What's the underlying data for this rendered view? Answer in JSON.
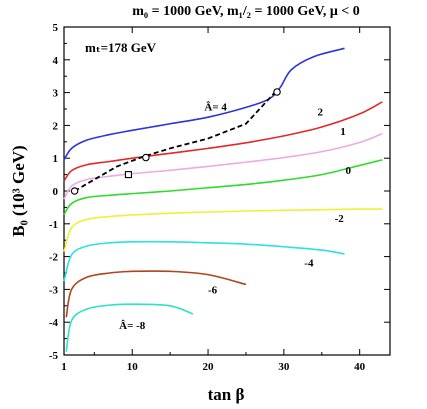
{
  "chart_data": {
    "type": "line",
    "title": "m₀ = 1000 GeV, m₁/₂ = 1000 GeV, μ < 0",
    "xlabel": "tan β",
    "ylabel": "B₀ (10³ GeV)",
    "annotation": "mₜ=178 GeV",
    "xlim": [
      1,
      44
    ],
    "ylim": [
      -5,
      5
    ],
    "xticks": [
      1,
      10,
      20,
      30,
      40
    ],
    "yticks": [
      -5,
      -4,
      -3,
      -2,
      -1,
      0,
      1,
      2,
      3,
      4,
      5
    ],
    "grid": false,
    "series": [
      {
        "name": "Â= 4",
        "color": "#2b35d8",
        "x": [
          1,
          2,
          4,
          7,
          10,
          15,
          20,
          25,
          28,
          29.5,
          31,
          34,
          38
        ],
        "y": [
          0.95,
          1.3,
          1.55,
          1.72,
          1.85,
          2.05,
          2.25,
          2.55,
          2.8,
          3.15,
          3.7,
          4.1,
          4.35
        ]
      },
      {
        "name": "2",
        "color": "#e02a2a",
        "x": [
          1,
          2,
          4,
          7,
          10,
          15,
          20,
          25,
          30,
          35,
          40,
          43
        ],
        "y": [
          0.3,
          0.62,
          0.8,
          0.9,
          1.0,
          1.15,
          1.3,
          1.47,
          1.68,
          1.95,
          2.35,
          2.72
        ]
      },
      {
        "name": "1",
        "color": "#eea9e8",
        "x": [
          1,
          2,
          4,
          7,
          10,
          15,
          20,
          25,
          30,
          35,
          40,
          43
        ],
        "y": [
          -0.25,
          0.15,
          0.35,
          0.45,
          0.53,
          0.63,
          0.75,
          0.88,
          1.02,
          1.2,
          1.48,
          1.75
        ]
      },
      {
        "name": "0",
        "color": "#2fdc2a",
        "x": [
          1,
          2,
          4,
          7,
          10,
          15,
          20,
          25,
          30,
          35,
          40,
          43
        ],
        "y": [
          -0.72,
          -0.38,
          -0.2,
          -0.13,
          -0.08,
          0.0,
          0.1,
          0.2,
          0.33,
          0.5,
          0.78,
          0.95
        ]
      },
      {
        "name": "-2",
        "color": "#eef03a",
        "x": [
          1,
          2,
          4,
          7,
          10,
          15,
          20,
          25,
          30,
          35,
          40,
          43
        ],
        "y": [
          -1.85,
          -1.12,
          -0.87,
          -0.78,
          -0.73,
          -0.68,
          -0.64,
          -0.61,
          -0.59,
          -0.57,
          -0.55,
          -0.55
        ]
      },
      {
        "name": "-4",
        "color": "#2fe0e0",
        "x": [
          1,
          2,
          4,
          7,
          10,
          15,
          20,
          25,
          30,
          35,
          38
        ],
        "y": [
          -2.75,
          -1.95,
          -1.68,
          -1.58,
          -1.55,
          -1.55,
          -1.58,
          -1.62,
          -1.7,
          -1.8,
          -1.92
        ]
      },
      {
        "name": "-6",
        "color": "#b0441a",
        "x": [
          1.3,
          2,
          4,
          7,
          10,
          15,
          20,
          25
        ],
        "y": [
          -3.85,
          -3.0,
          -2.63,
          -2.5,
          -2.45,
          -2.45,
          -2.55,
          -2.85
        ]
      },
      {
        "name": "Â= -8",
        "color": "#2fe0c8",
        "x": [
          1.3,
          2,
          4,
          7,
          10,
          15,
          18
        ],
        "y": [
          -4.9,
          -3.95,
          -3.6,
          -3.48,
          -3.45,
          -3.5,
          -3.75
        ]
      },
      {
        "name": "",
        "color": "#000000",
        "dashed": true,
        "x": [
          2.4,
          5,
          8,
          11.5,
          15,
          20,
          25,
          29
        ],
        "y": [
          0.0,
          0.35,
          0.75,
          1.05,
          1.3,
          1.6,
          2.05,
          3.05
        ]
      }
    ],
    "markers": [
      {
        "shape": "circle",
        "x": 2.4,
        "y": 0.0
      },
      {
        "shape": "circle",
        "x": 11.8,
        "y": 1.02
      },
      {
        "shape": "circle",
        "x": 29.1,
        "y": 3.02
      },
      {
        "shape": "square",
        "x": 9.5,
        "y": 0.5
      }
    ],
    "curve_labels": [
      {
        "text": "Â= 4",
        "x": 21,
        "y": 2.45
      },
      {
        "text": "2",
        "x": 34.8,
        "y": 2.3
      },
      {
        "text": "1",
        "x": 37.8,
        "y": 1.7
      },
      {
        "text": "0",
        "x": 38.5,
        "y": 0.52
      },
      {
        "text": "-2",
        "x": 37.3,
        "y": -0.95
      },
      {
        "text": "-4",
        "x": 33.3,
        "y": -2.3
      },
      {
        "text": "-6",
        "x": 20.6,
        "y": -3.12
      },
      {
        "text": "Â= -8",
        "x": 10,
        "y": -4.2
      }
    ]
  }
}
